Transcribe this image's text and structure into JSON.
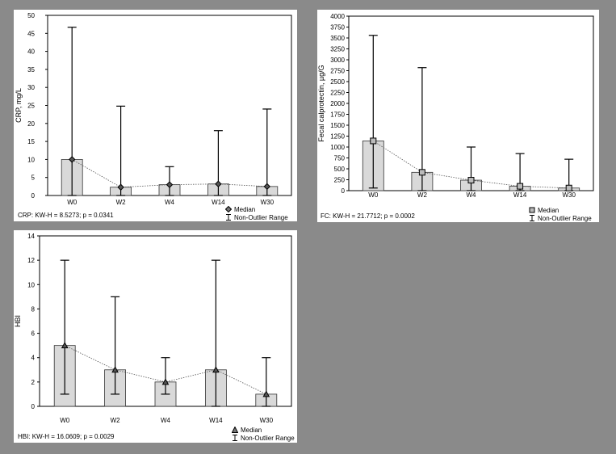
{
  "chart_data": [
    {
      "type": "bar",
      "ylabel": "CRP, mg/L",
      "xlabel": "",
      "categories": [
        "W0",
        "W2",
        "W4",
        "W14",
        "W30"
      ],
      "ylim": [
        0,
        50
      ],
      "yticks": [
        0,
        5,
        10,
        15,
        20,
        25,
        30,
        35,
        40,
        45,
        50
      ],
      "marker": "diamond",
      "series": [
        {
          "name": "Median",
          "values": [
            10,
            2.3,
            3,
            3.2,
            2.5
          ]
        },
        {
          "name": "Non-Outlier Range",
          "low": [
            0,
            0,
            0,
            0,
            0
          ],
          "high": [
            46.7,
            24.8,
            8,
            18,
            24
          ]
        }
      ],
      "stat": "CRP:  KW-H = 8.5273; p = 0.0341",
      "legend": [
        "Median",
        "Non-Outlier Range"
      ],
      "legend_position": "bottom-right",
      "grid": false
    },
    {
      "type": "bar",
      "ylabel": "Fecal calprotectin, µg/G",
      "xlabel": "",
      "categories": [
        "W0",
        "W2",
        "W4",
        "W14",
        "W30"
      ],
      "ylim": [
        0,
        4000
      ],
      "yticks": [
        0,
        250,
        500,
        750,
        1000,
        1250,
        1500,
        1750,
        2000,
        2250,
        2500,
        2750,
        3000,
        3250,
        3500,
        3750,
        4000
      ],
      "marker": "square",
      "series": [
        {
          "name": "Median",
          "values": [
            1140,
            420,
            240,
            100,
            60
          ]
        },
        {
          "name": "Non-Outlier Range",
          "low": [
            60,
            0,
            0,
            0,
            0
          ],
          "high": [
            3560,
            2820,
            1000,
            850,
            720
          ]
        }
      ],
      "stat": "FC:  KW-H = 21.7712; p = 0.0002",
      "legend": [
        "Median",
        "Non-Outlier Range"
      ],
      "legend_position": "bottom-right",
      "grid": false
    },
    {
      "type": "bar",
      "ylabel": "HBI",
      "xlabel": "",
      "categories": [
        "W0",
        "W2",
        "W4",
        "W14",
        "W30"
      ],
      "ylim": [
        0,
        14
      ],
      "yticks": [
        0,
        2,
        4,
        6,
        8,
        10,
        12,
        14
      ],
      "marker": "triangle",
      "series": [
        {
          "name": "Median",
          "values": [
            5,
            3,
            2,
            3,
            1
          ]
        },
        {
          "name": "Non-Outlier Range",
          "low": [
            1,
            1,
            1,
            0,
            0
          ],
          "high": [
            12,
            9,
            4,
            12,
            4
          ]
        }
      ],
      "stat": "HBI:  KW-H = 16.0609; p = 0.0029",
      "legend": [
        "Median",
        "Non-Outlier Range"
      ],
      "legend_position": "bottom-right",
      "grid": false
    }
  ]
}
